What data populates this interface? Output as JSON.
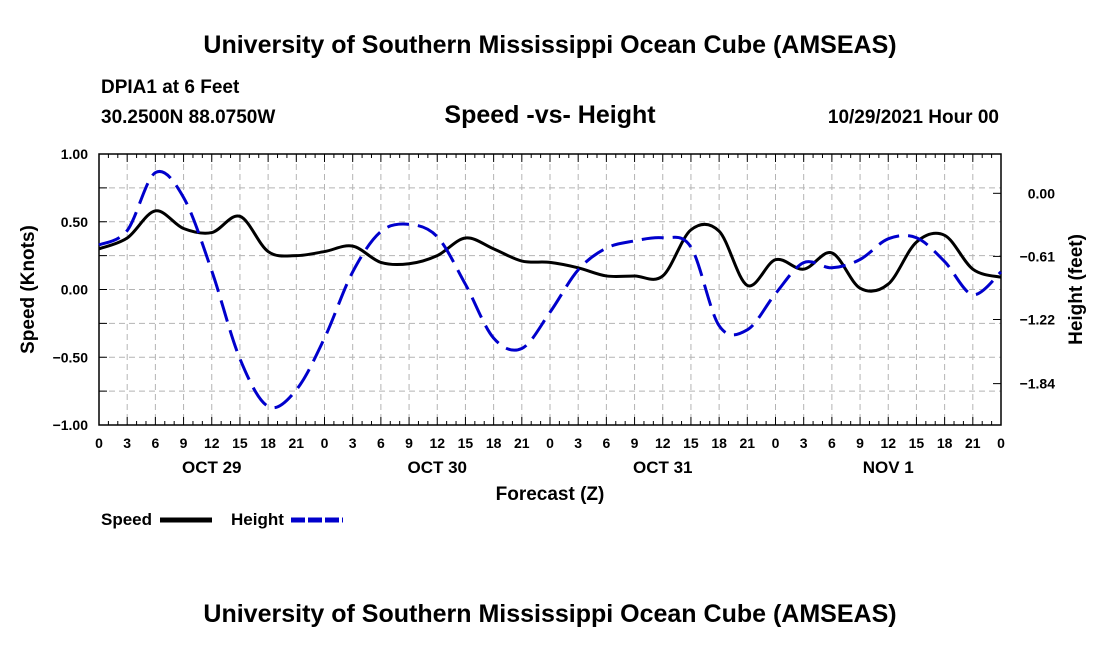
{
  "header": {
    "title": "University of Southern Mississippi Ocean Cube (AMSEAS)",
    "footer_title": "University of Southern Mississippi Ocean Cube (AMSEAS)",
    "station": "DPIA1 at 6 Feet",
    "coords": "30.2500N  88.0750W",
    "chart_title": "Speed -vs- Height",
    "datetime": "10/29/2021 Hour 00"
  },
  "colors": {
    "speed": "#000000",
    "height": "#0000cc",
    "grid": "#b4b4b4"
  },
  "chart_data": {
    "type": "line",
    "title": "Speed -vs- Height",
    "xlabel": "Forecast (Z)",
    "ylabel": "Speed (Knots)",
    "y2label": "Height (feet)",
    "xlim": [
      0,
      96
    ],
    "ylim": [
      -1.0,
      1.0
    ],
    "y2lim": [
      -2.24,
      0.38
    ],
    "x_tick_labels": [
      "0",
      "3",
      "6",
      "9",
      "12",
      "15",
      "18",
      "21",
      "0",
      "3",
      "6",
      "9",
      "12",
      "15",
      "18",
      "21",
      "0",
      "3",
      "6",
      "9",
      "12",
      "15",
      "18",
      "21",
      "0",
      "3",
      "6",
      "9",
      "12",
      "15",
      "18",
      "21",
      "0"
    ],
    "y_ticks": [
      {
        "value": 1.0,
        "label": "1.00"
      },
      {
        "value": 0.5,
        "label": "0.50"
      },
      {
        "value": 0.0,
        "label": "0.00"
      },
      {
        "value": -0.5,
        "label": "−0.50"
      },
      {
        "value": -1.0,
        "label": "−1.00"
      }
    ],
    "y2_ticks": [
      {
        "value": 0.0,
        "label": "0.00"
      },
      {
        "value": -0.61,
        "label": "−0.61"
      },
      {
        "value": -1.22,
        "label": "−1.22"
      },
      {
        "value": -1.84,
        "label": "−1.84"
      }
    ],
    "day_labels": [
      {
        "x": 12,
        "label": "OCT 29"
      },
      {
        "x": 36,
        "label": "OCT 30"
      },
      {
        "x": 60,
        "label": "OCT 31"
      },
      {
        "x": 84,
        "label": "NOV 1"
      }
    ],
    "series": [
      {
        "name": "Speed",
        "axis": "left",
        "style": "solid",
        "x": [
          0,
          3,
          6,
          9,
          12,
          15,
          18,
          21,
          24,
          27,
          30,
          33,
          36,
          39,
          42,
          45,
          48,
          51,
          54,
          57,
          60,
          63,
          66,
          69,
          72,
          75,
          78,
          81,
          84,
          87,
          90,
          93,
          96
        ],
        "y": [
          0.3,
          0.38,
          0.58,
          0.45,
          0.42,
          0.54,
          0.28,
          0.25,
          0.28,
          0.32,
          0.2,
          0.19,
          0.25,
          0.38,
          0.3,
          0.21,
          0.2,
          0.16,
          0.1,
          0.1,
          0.1,
          0.44,
          0.43,
          0.03,
          0.22,
          0.15,
          0.27,
          0.01,
          0.04,
          0.35,
          0.4,
          0.15,
          0.09
        ]
      },
      {
        "name": "Height",
        "axis": "right",
        "style": "dashed",
        "x": [
          0,
          3,
          6,
          9,
          12,
          15,
          18,
          21,
          24,
          27,
          30,
          33,
          36,
          39,
          42,
          45,
          48,
          51,
          54,
          57,
          60,
          63,
          66,
          69,
          72,
          75,
          78,
          81,
          84,
          87,
          90,
          93,
          96
        ],
        "y": [
          -0.5,
          -0.36,
          0.2,
          -0.04,
          -0.75,
          -1.6,
          -2.06,
          -1.9,
          -1.4,
          -0.76,
          -0.37,
          -0.3,
          -0.42,
          -0.88,
          -1.4,
          -1.5,
          -1.15,
          -0.74,
          -0.53,
          -0.46,
          -0.43,
          -0.52,
          -1.28,
          -1.32,
          -0.97,
          -0.67,
          -0.72,
          -0.64,
          -0.44,
          -0.43,
          -0.66,
          -0.98,
          -0.76
        ]
      }
    ],
    "legend": {
      "position": "bottom-left",
      "entries": [
        "Speed",
        "Height"
      ]
    }
  }
}
